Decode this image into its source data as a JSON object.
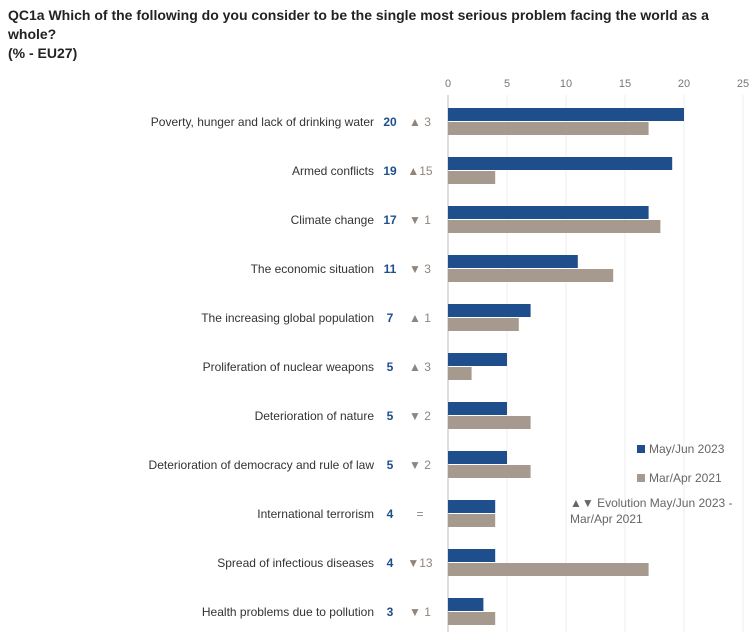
{
  "chart_data": {
    "type": "bar",
    "title": "QC1a  Which of the following do you consider to be the single most serious problem facing the world as a whole?",
    "subtitle": "(% - EU27)",
    "categories": [
      "Poverty, hunger and lack of drinking water",
      "Armed conflicts",
      "Climate change",
      "The economic situation",
      "The increasing global population",
      "Proliferation of nuclear weapons",
      "Deterioration of nature",
      "Deterioration of democracy and rule of law",
      "International terrorism",
      "Spread of infectious diseases",
      "Health problems due to pollution"
    ],
    "series": [
      {
        "name": "May/Jun 2023",
        "color": "#1f4e8c",
        "values": [
          20,
          19,
          17,
          11,
          7,
          5,
          5,
          5,
          4,
          4,
          3
        ]
      },
      {
        "name": "Mar/Apr 2021",
        "color": "#a69a8f",
        "values": [
          17,
          4,
          18,
          14,
          6,
          2,
          7,
          7,
          4,
          17,
          4
        ]
      }
    ],
    "value_labels": [
      "20",
      "19",
      "17",
      "11",
      "7",
      "5",
      "5",
      "5",
      "4",
      "4",
      "3"
    ],
    "evolution": [
      "▲ 3",
      "▲15",
      "▼ 1",
      "▼ 3",
      "▲ 1",
      "▲ 3",
      "▼ 2",
      "▼ 2",
      "=",
      "▼13",
      "▼ 1"
    ],
    "xticks": [
      "0",
      "5",
      "10",
      "15",
      "20",
      "25"
    ],
    "xlim": [
      0,
      25
    ],
    "legend_position": "right",
    "legend_evolution": "▲▼ Evolution May/Jun 2023 - Mar/Apr 2021"
  }
}
